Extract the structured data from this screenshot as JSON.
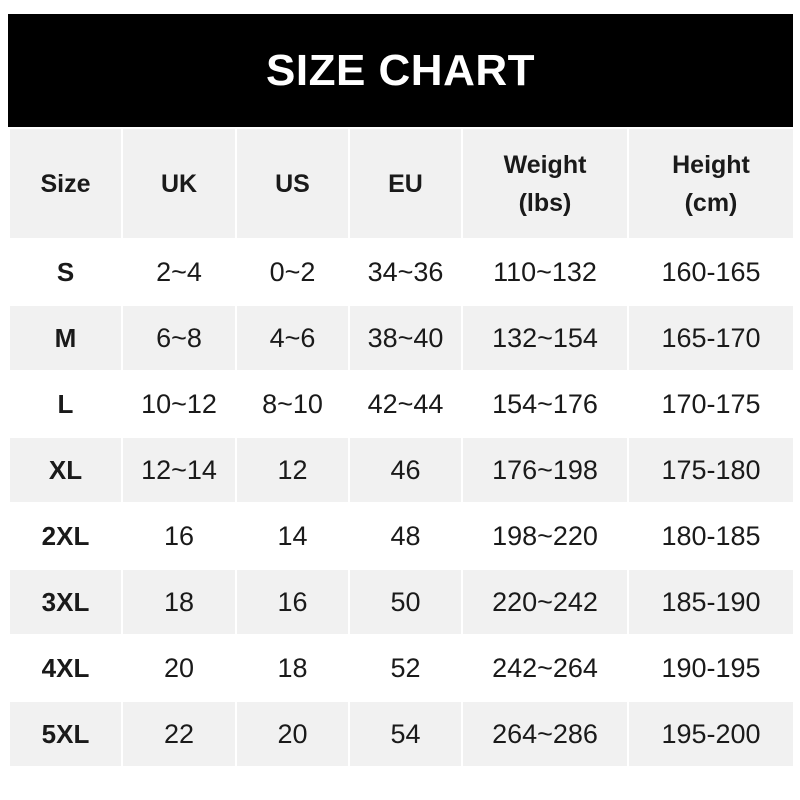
{
  "title": "SIZE CHART",
  "headers": [
    "Size",
    "UK",
    "US",
    "EU",
    "Weight\n(lbs)",
    "Height\n(cm)"
  ],
  "rows": [
    [
      "S",
      "2~4",
      "0~2",
      "34~36",
      "110~132",
      "160-165"
    ],
    [
      "M",
      "6~8",
      "4~6",
      "38~40",
      "132~154",
      "165-170"
    ],
    [
      "L",
      "10~12",
      "8~10",
      "42~44",
      "154~176",
      "170-175"
    ],
    [
      "XL",
      "12~14",
      "12",
      "46",
      "176~198",
      "175-180"
    ],
    [
      "2XL",
      "16",
      "14",
      "48",
      "198~220",
      "180-185"
    ],
    [
      "3XL",
      "18",
      "16",
      "50",
      "220~242",
      "185-190"
    ],
    [
      "4XL",
      "20",
      "18",
      "52",
      "242~264",
      "190-195"
    ],
    [
      "5XL",
      "22",
      "20",
      "54",
      "264~286",
      "195-200"
    ]
  ],
  "colors": {
    "title_bg": "#000000",
    "title_text": "#ffffff",
    "stripe": "#f1f1f1"
  }
}
